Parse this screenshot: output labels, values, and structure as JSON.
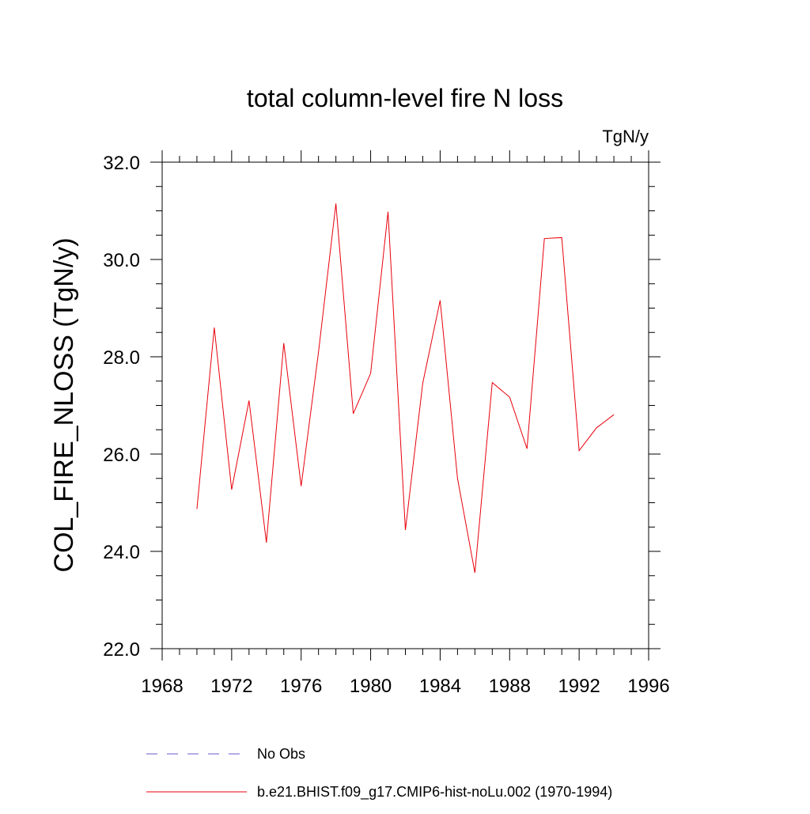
{
  "chart_data": {
    "type": "line",
    "title": "total column-level fire N loss",
    "units_label": "TgN/y",
    "ylabel": "COL_FIRE_NLOSS  (TgN/y)",
    "xlabel": "",
    "xlim": [
      1968,
      1996
    ],
    "ylim": [
      22.0,
      32.0
    ],
    "x_major_ticks": [
      1968,
      1972,
      1976,
      1980,
      1984,
      1988,
      1992,
      1996
    ],
    "x_tick_labels": [
      "1968",
      "1972",
      "1976",
      "1980",
      "1984",
      "1988",
      "1992",
      "1996"
    ],
    "y_major_ticks": [
      22.0,
      24.0,
      26.0,
      28.0,
      30.0,
      32.0
    ],
    "y_tick_labels": [
      "22.0",
      "24.0",
      "26.0",
      "28.0",
      "30.0",
      "32.0"
    ],
    "grid": false,
    "legend_placement": "bottom",
    "series": [
      {
        "name": "b.e21.BHIST.f09_g17.CMIP6-hist-noLu.002 (1970-1994)",
        "color": "#e8000b",
        "dash": "solid",
        "x": [
          1970,
          1971,
          1972,
          1973,
          1974,
          1975,
          1976,
          1977,
          1978,
          1979,
          1980,
          1981,
          1982,
          1983,
          1984,
          1985,
          1986,
          1987,
          1988,
          1989,
          1990,
          1991,
          1992,
          1993,
          1994
        ],
        "values": [
          24.87,
          28.6,
          25.27,
          27.1,
          24.18,
          28.28,
          25.34,
          28.1,
          31.15,
          26.83,
          27.66,
          30.98,
          24.44,
          27.46,
          29.16,
          25.5,
          23.56,
          27.47,
          27.17,
          26.11,
          30.43,
          30.45,
          26.07,
          26.54,
          26.81
        ]
      }
    ],
    "legend": [
      {
        "label": "No Obs",
        "color": "#6a5acd",
        "dash": "dashed"
      },
      {
        "label": "b.e21.BHIST.f09_g17.CMIP6-hist-noLu.002 (1970-1994)",
        "color": "#e8000b",
        "dash": "solid"
      }
    ]
  }
}
